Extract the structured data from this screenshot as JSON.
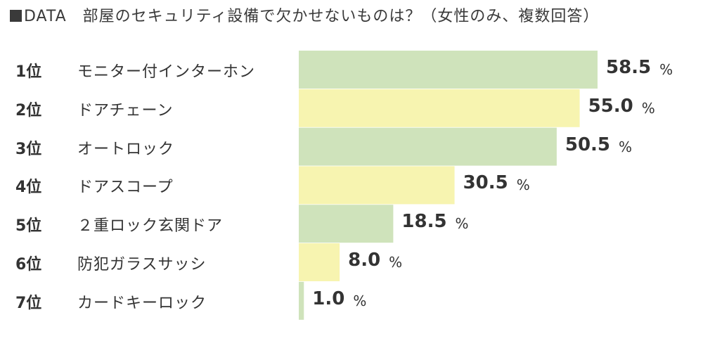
{
  "title": "DATA　部屋のセキュリティ設備で欠かせないものは？（女性のみ、複数回答）",
  "unit": "%",
  "colors": {
    "green": "#cfe3bb",
    "yellow": "#f7f4b0",
    "text": "#333333"
  },
  "chart_data": {
    "type": "bar",
    "orientation": "horizontal",
    "title": "DATA　部屋のセキュリティ設備で欠かせないものは？（女性のみ、複数回答）",
    "ranks": [
      "1位",
      "2位",
      "3位",
      "4位",
      "5位",
      "6位",
      "7位"
    ],
    "categories": [
      "モニター付インターホン",
      "ドアチェーン",
      "オートロック",
      "ドアスコープ",
      "２重ロック玄関ドア",
      "防犯ガラスサッシ",
      "カードキーロック"
    ],
    "values": [
      58.5,
      55.0,
      50.5,
      30.5,
      18.5,
      8.0,
      1.0
    ],
    "value_labels": [
      "58.5",
      "55.0",
      "50.5",
      "30.5",
      "18.5",
      "8.0",
      "1.0"
    ],
    "bar_colors": [
      "#cfe3bb",
      "#f7f4b0",
      "#cfe3bb",
      "#f7f4b0",
      "#cfe3bb",
      "#f7f4b0",
      "#cfe3bb"
    ],
    "unit": "%",
    "xlim": [
      0,
      60
    ],
    "grid": false,
    "legend": "none"
  }
}
